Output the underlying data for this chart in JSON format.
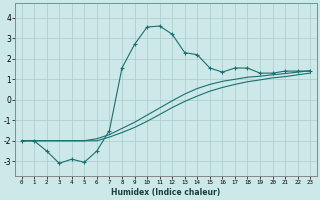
{
  "title": "",
  "xlabel": "Humidex (Indice chaleur)",
  "background_color": "#cce8e8",
  "grid_color": "#aacccc",
  "line_color": "#1a7070",
  "xlim": [
    -0.5,
    23.5
  ],
  "ylim": [
    -3.7,
    4.7
  ],
  "yticks": [
    -3,
    -2,
    -1,
    0,
    1,
    2,
    3,
    4
  ],
  "xticks": [
    0,
    1,
    2,
    3,
    4,
    5,
    6,
    7,
    8,
    9,
    10,
    11,
    12,
    13,
    14,
    15,
    16,
    17,
    18,
    19,
    20,
    21,
    22,
    23
  ],
  "curve1_x": [
    0,
    1,
    2,
    3,
    4,
    5,
    6,
    7,
    8,
    9,
    10,
    11,
    12,
    13,
    14,
    15,
    16,
    17,
    18,
    19,
    20,
    21,
    22,
    23
  ],
  "curve1_y": [
    -2.0,
    -2.0,
    -2.5,
    -3.1,
    -2.9,
    -3.05,
    -2.5,
    -1.5,
    1.55,
    2.7,
    3.55,
    3.6,
    3.2,
    2.3,
    2.2,
    1.55,
    1.35,
    1.55,
    1.55,
    1.3,
    1.3,
    1.4,
    1.4,
    1.4
  ],
  "curve2_x": [
    0,
    1,
    2,
    3,
    4,
    5,
    6,
    7,
    8,
    9,
    10,
    11,
    12,
    13,
    14,
    15,
    16,
    17,
    18,
    19,
    20,
    21,
    22,
    23
  ],
  "curve2_y": [
    -2.0,
    -2.0,
    -2.0,
    -2.0,
    -2.0,
    -2.0,
    -1.9,
    -1.7,
    -1.4,
    -1.1,
    -0.75,
    -0.4,
    -0.05,
    0.28,
    0.55,
    0.75,
    0.9,
    1.0,
    1.1,
    1.15,
    1.22,
    1.28,
    1.35,
    1.42
  ],
  "curve3_x": [
    0,
    1,
    2,
    3,
    4,
    5,
    6,
    7,
    8,
    9,
    10,
    11,
    12,
    13,
    14,
    15,
    16,
    17,
    18,
    19,
    20,
    21,
    22,
    23
  ],
  "curve3_y": [
    -2.0,
    -2.0,
    -2.0,
    -2.0,
    -2.0,
    -2.0,
    -2.0,
    -1.82,
    -1.6,
    -1.35,
    -1.05,
    -0.72,
    -0.38,
    -0.08,
    0.18,
    0.42,
    0.6,
    0.75,
    0.88,
    0.97,
    1.07,
    1.13,
    1.22,
    1.3
  ]
}
